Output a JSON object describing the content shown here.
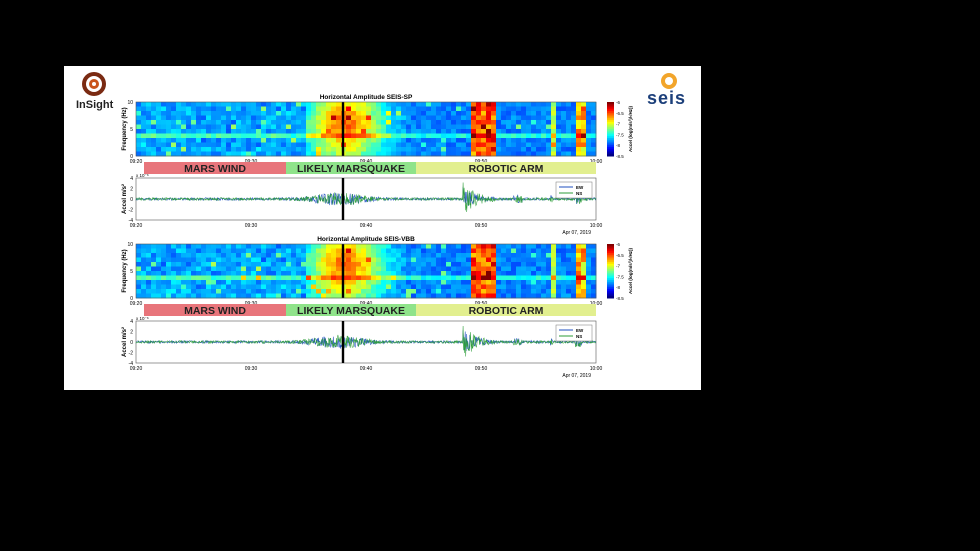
{
  "logos": {
    "left_text": "InSight",
    "right_text": "seis"
  },
  "colors": {
    "mars_wind": "#e8757b",
    "marsquake": "#8fe38a",
    "robotic_arm": "#e2ef8f",
    "ew_trace": "#1f4fbf",
    "ns_trace": "#2e9e3a",
    "event_line": "#000000"
  },
  "labels": {
    "mars_wind": "MARS WIND",
    "marsquake": "LIKELY MARSQUAKE",
    "robotic_arm": "ROBOTIC ARM"
  },
  "chart_data": [
    {
      "type": "heatmap",
      "title": "Horizontal Amplitude SEIS-SP",
      "xlabel": "",
      "ylabel": "Frequency (Hz)",
      "x_ticks": [
        "09:20",
        "09:30",
        "09:40",
        "09:50",
        "10:00"
      ],
      "y_ticks": [
        "10",
        "5",
        "0"
      ],
      "ylim": [
        0,
        10
      ],
      "date_label": "Apr 07, 2019",
      "colorbar_label": "Accel (log(m/s²)/√Hz))",
      "colorbar_ticks": [
        "-6",
        "-6.5",
        "-7",
        "-7.5",
        "-8",
        "-8.5"
      ],
      "clim": [
        -8.5,
        -6
      ],
      "event_time": "09:38"
    },
    {
      "type": "line",
      "title": "",
      "xlabel": "",
      "ylabel": "Accel m/s²",
      "y_exponent": "x 10⁻⁶",
      "x_ticks": [
        "09:20",
        "09:30",
        "09:40",
        "09:50",
        "10:00"
      ],
      "y_ticks": [
        "4",
        "2",
        "0",
        "-2",
        "-4"
      ],
      "ylim": [
        -4,
        4
      ],
      "date_label": "Apr 07, 2019",
      "series": [
        {
          "name": "EW"
        },
        {
          "name": "NS"
        }
      ],
      "event_time": "09:38"
    },
    {
      "type": "heatmap",
      "title": "Horizontal Amplitude SEIS-VBB",
      "xlabel": "",
      "ylabel": "Frequency (Hz)",
      "x_ticks": [
        "09:20",
        "09:30",
        "09:40",
        "09:50",
        "10:00"
      ],
      "y_ticks": [
        "10",
        "5",
        "0"
      ],
      "ylim": [
        0,
        10
      ],
      "date_label": "Apr 07, 2019",
      "colorbar_label": "Accel (log(m/s²)/√Hz))",
      "colorbar_ticks": [
        "-6",
        "-6.5",
        "-7",
        "-7.5",
        "-8",
        "-8.5"
      ],
      "clim": [
        -8.5,
        -6
      ],
      "event_time": "09:38"
    },
    {
      "type": "line",
      "title": "",
      "xlabel": "",
      "ylabel": "Accel m/s²",
      "y_exponent": "x 10⁻⁶",
      "x_ticks": [
        "09:20",
        "09:30",
        "09:40",
        "09:50",
        "10:00"
      ],
      "y_ticks": [
        "4",
        "2",
        "0",
        "-2",
        "-4"
      ],
      "ylim": [
        -4,
        4
      ],
      "date_label": "Apr 07, 2019",
      "series": [
        {
          "name": "EW"
        },
        {
          "name": "NS"
        }
      ],
      "event_time": "09:38"
    }
  ]
}
